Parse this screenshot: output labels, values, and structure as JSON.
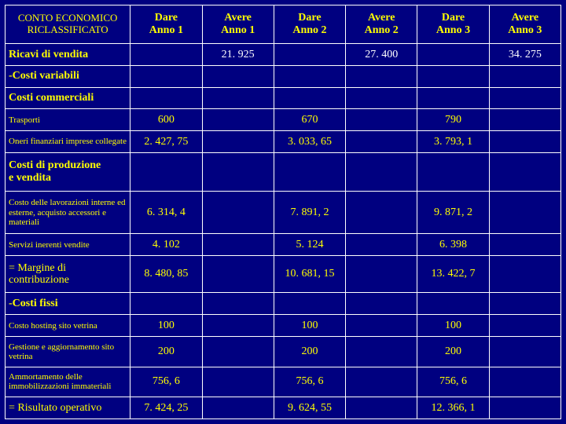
{
  "colors": {
    "background": "#000080",
    "border": "#ffffff",
    "header_text": "#ffff00",
    "label_text": "#ffff00",
    "dare_text": "#ffff00",
    "avere_text": "#ffffff"
  },
  "fonts": {
    "family": "Times New Roman",
    "header_size_pt": 14,
    "section_size_pt": 14,
    "item_size_pt": 11,
    "value_size_pt": 14
  },
  "headers": {
    "title_line1": "CONTO ECONOMICO",
    "title_line2": "RICLASSIFICATO",
    "dare1_l1": "Dare",
    "dare1_l2": "Anno 1",
    "avere1_l1": "Avere",
    "avere1_l2": "Anno 1",
    "dare2_l1": "Dare",
    "dare2_l2": "Anno 2",
    "avere2_l1": "Avere",
    "avere2_l2": "Anno 2",
    "dare3_l1": "Dare",
    "dare3_l2": "Anno 3",
    "avere3_l1": "Avere",
    "avere3_l2": "Anno 3"
  },
  "rows": {
    "ricavi": {
      "label": "Ricavi di vendita",
      "avere1": "21. 925",
      "avere2": "27. 400",
      "avere3": "34. 275"
    },
    "costi_variabili": {
      "label": "-Costi variabili"
    },
    "costi_commerciali": {
      "label": "Costi commerciali"
    },
    "trasporti": {
      "label": "Trasporti",
      "dare1": "600",
      "dare2": "670",
      "dare3": "790"
    },
    "oneri": {
      "label": "Oneri finanziari imprese collegate",
      "dare1": "2. 427, 75",
      "dare2": "3. 033, 65",
      "dare3": "3. 793, 1"
    },
    "costi_prod": {
      "label1": "Costi di produzione",
      "label2": "e vendita"
    },
    "lavorazioni": {
      "label": "Costo delle lavorazioni interne ed esterne, acquisto accessori e materiali",
      "dare1": "6. 314, 4",
      "dare2": "7. 891, 2",
      "dare3": "9. 871, 2"
    },
    "servizi": {
      "label": "Servizi inerenti vendite",
      "dare1": "4. 102",
      "dare2": "5. 124",
      "dare3": "6. 398"
    },
    "margine": {
      "label1": "= Margine di",
      "label2": "contribuzione",
      "dare1": "8. 480, 85",
      "dare2": "10. 681, 15",
      "dare3": "13. 422, 7"
    },
    "costi_fissi": {
      "label": "-Costi fissi"
    },
    "hosting": {
      "label": "Costo hosting sito vetrina",
      "dare1": "100",
      "dare2": "100",
      "dare3": "100"
    },
    "gestione": {
      "label": "Gestione e aggiornamento sito vetrina",
      "dare1": "200",
      "dare2": "200",
      "dare3": "200"
    },
    "ammort": {
      "label": "Ammortamento delle immobilizzazioni immateriali",
      "dare1": "756, 6",
      "dare2": "756, 6",
      "dare3": "756, 6"
    },
    "risultato": {
      "label": "= Risultato operativo",
      "dare1": "7. 424, 25",
      "dare2": "9. 624, 55",
      "dare3": "12. 366, 1"
    }
  }
}
